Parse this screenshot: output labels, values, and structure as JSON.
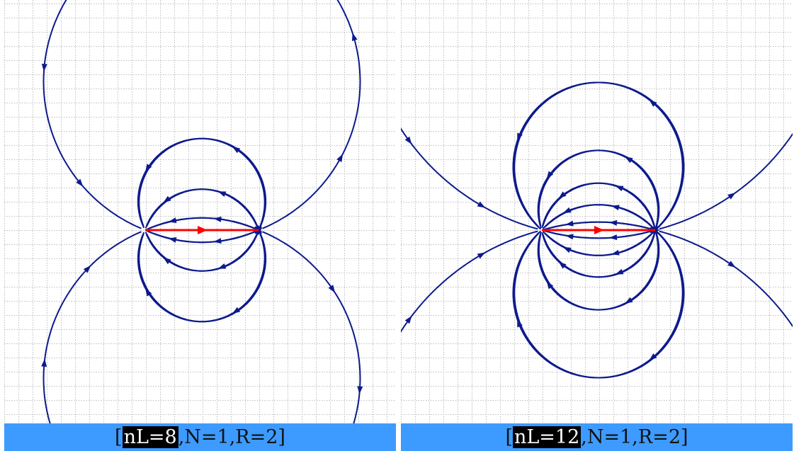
{
  "colors": {
    "field_line": "#0d1a8c",
    "dipole_segment": "#ff0000",
    "grid": "#bdbdbd",
    "caption_background": "#3d9bff",
    "caption_highlight": "#000000"
  },
  "panels": [
    {
      "caption": {
        "open": "[",
        "highlight": "nL=8",
        "rest": ",N=1,R=2]"
      },
      "n_lines": 8,
      "N": 1,
      "R": 2
    },
    {
      "caption": {
        "open": "[",
        "highlight": "nL=12",
        "rest": ",N=1,R=2]"
      },
      "n_lines": 12,
      "N": 1,
      "R": 2
    }
  ],
  "icons": {
    "field_line_arrow": "arrowhead-icon",
    "dipole_arrow": "arrowhead-icon"
  }
}
